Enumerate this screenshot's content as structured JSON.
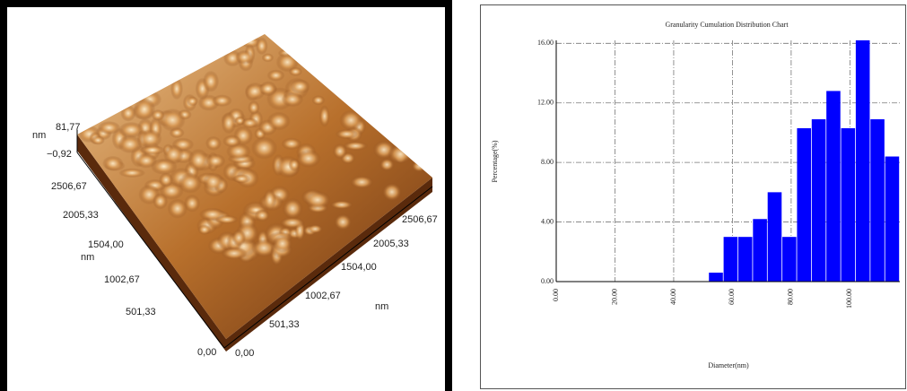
{
  "afm_image": {
    "z_max": "81,77",
    "z_unit": "nm",
    "z_min": "−0,92",
    "y_ticks": [
      "2506,67",
      "2005,33",
      "1504,00",
      "1002,67",
      "501,33",
      "0,00"
    ],
    "y_unit": "nm",
    "x_ticks": [
      "0,00",
      "501,33",
      "1002,67",
      "1504,00",
      "2005,33",
      "2506,67"
    ],
    "x_unit": "nm"
  },
  "chart_data": {
    "type": "histogram",
    "title": "Granularity Cumulation Distribution  Chart",
    "xlabel": "Diameter(nm)",
    "ylabel": "Percentage(%)",
    "bins": [
      52,
      57,
      62,
      67,
      72,
      77,
      82,
      87,
      92,
      97,
      102,
      107,
      112,
      117
    ],
    "values": [
      0.6,
      3.0,
      3.0,
      4.2,
      6.0,
      3.0,
      10.3,
      10.9,
      12.8,
      10.3,
      16.2,
      10.9,
      8.4
    ],
    "color": "#0000ff",
    "xlim": [
      0,
      117
    ],
    "ylim": [
      0,
      16.2
    ],
    "xticks": [
      {
        "value": 0,
        "label": "0.00"
      },
      {
        "value": 20,
        "label": "20.00"
      },
      {
        "value": 40,
        "label": "40.00"
      },
      {
        "value": 60,
        "label": "60.00"
      },
      {
        "value": 80,
        "label": "80.00"
      },
      {
        "value": 100,
        "label": "100.00"
      }
    ],
    "yticks": [
      {
        "value": 0,
        "label": "0.00"
      },
      {
        "value": 4,
        "label": "4.00"
      },
      {
        "value": 8,
        "label": "8.00"
      },
      {
        "value": 12,
        "label": "12.00"
      },
      {
        "value": 16,
        "label": "16.00"
      }
    ],
    "grid": true
  }
}
